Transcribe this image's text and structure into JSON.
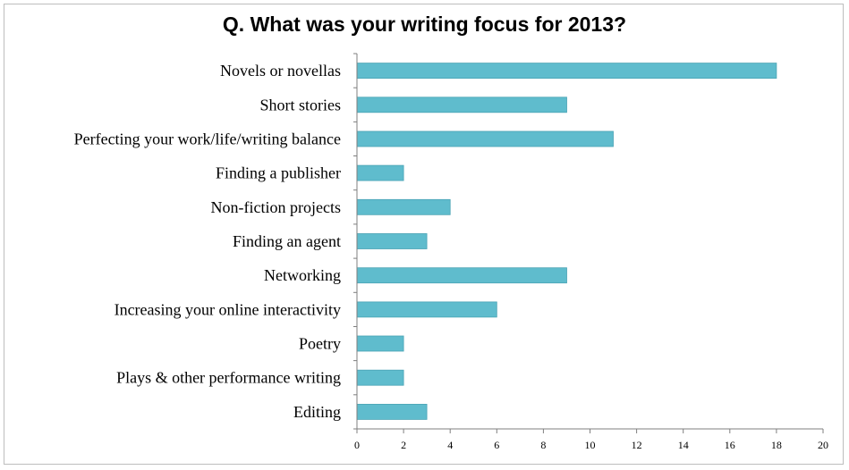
{
  "chart_data": {
    "type": "bar",
    "orientation": "horizontal",
    "title": "Q. What was your writing focus for 2013?",
    "categories": [
      "Novels or novellas",
      "Short stories",
      "Perfecting your work/life/writing balance",
      "Finding a publisher",
      "Non-fiction projects",
      "Finding an agent",
      "Networking",
      "Increasing your online interactivity",
      "Poetry",
      "Plays & other performance writing",
      "Editing"
    ],
    "values": [
      18,
      9,
      11,
      2,
      4,
      3,
      9,
      6,
      2,
      2,
      3
    ],
    "xlim": [
      0,
      20
    ],
    "xticks": [
      0,
      2,
      4,
      6,
      8,
      10,
      12,
      14,
      16,
      18,
      20
    ],
    "xlabel": "",
    "ylabel": "",
    "grid": false,
    "legend": "none",
    "colors": {
      "bar": "#5fbccd",
      "bar_edge": "#4aa3b4",
      "axis": "#7f7f7f"
    }
  }
}
